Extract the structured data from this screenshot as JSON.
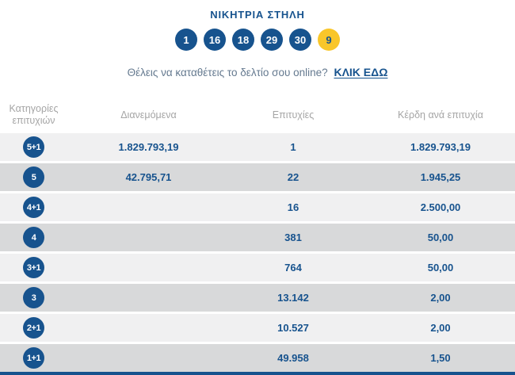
{
  "header": {
    "title": "ΝΙΚΗΤΡΙΑ ΣΤΗΛΗ",
    "numbers": [
      "1",
      "16",
      "18",
      "29",
      "30"
    ],
    "joker": "9"
  },
  "cta": {
    "text": "Θέλεις να καταθέτεις το δελτίο σου online?",
    "link_label": "ΚΛΙΚ ΕΔΩ"
  },
  "table": {
    "headers": {
      "category": "Κατηγορίες επιτυχιών",
      "distributed": "Διανεμόμενα",
      "winners": "Επιτυχίες",
      "prize": "Κέρδη ανά επιτυχία"
    },
    "rows": [
      {
        "category": "5+1",
        "distributed": "1.829.793,19",
        "winners": "1",
        "prize": "1.829.793,19"
      },
      {
        "category": "5",
        "distributed": "42.795,71",
        "winners": "22",
        "prize": "1.945,25"
      },
      {
        "category": "4+1",
        "distributed": "",
        "winners": "16",
        "prize": "2.500,00"
      },
      {
        "category": "4",
        "distributed": "",
        "winners": "381",
        "prize": "50,00"
      },
      {
        "category": "3+1",
        "distributed": "",
        "winners": "764",
        "prize": "50,00"
      },
      {
        "category": "3",
        "distributed": "",
        "winners": "13.142",
        "prize": "2,00"
      },
      {
        "category": "2+1",
        "distributed": "",
        "winners": "10.527",
        "prize": "2,00"
      },
      {
        "category": "1+1",
        "distributed": "",
        "winners": "49.958",
        "prize": "1,50"
      }
    ]
  },
  "colors": {
    "accent_blue": "#17538E",
    "joker_yellow": "#F9C62A",
    "row_light": "#F0F0F1",
    "row_dark": "#D8D9DA",
    "header_text_gray": "#A5A5A5",
    "cta_text": "#64798F"
  }
}
